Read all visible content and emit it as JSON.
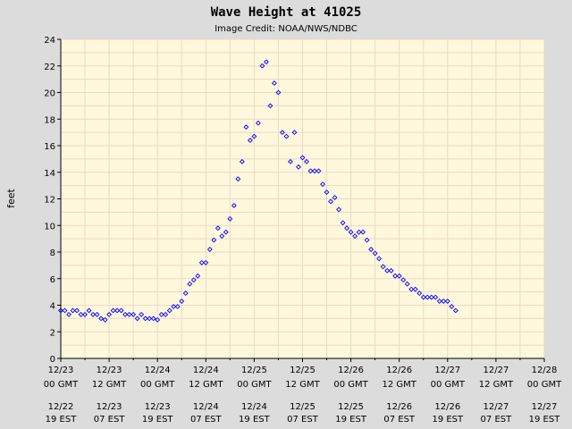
{
  "chart_data": {
    "type": "scatter",
    "title": "Wave Height at 41025",
    "subtitle": "Image Credit: NOAA/NWS/NDBC",
    "ylabel": "feet",
    "ylim": [
      0,
      24
    ],
    "yticks": [
      0,
      2,
      4,
      6,
      8,
      10,
      12,
      14,
      16,
      18,
      20,
      22,
      24
    ],
    "xlim": [
      "12/23 00:00 GMT",
      "12/28 00:00 GMT"
    ],
    "x_ticks_gmt": [
      {
        "date": "12/23",
        "time": "00 GMT"
      },
      {
        "date": "12/23",
        "time": "12 GMT"
      },
      {
        "date": "12/24",
        "time": "00 GMT"
      },
      {
        "date": "12/24",
        "time": "12 GMT"
      },
      {
        "date": "12/25",
        "time": "00 GMT"
      },
      {
        "date": "12/25",
        "time": "12 GMT"
      },
      {
        "date": "12/26",
        "time": "00 GMT"
      },
      {
        "date": "12/26",
        "time": "12 GMT"
      },
      {
        "date": "12/27",
        "time": "00 GMT"
      },
      {
        "date": "12/27",
        "time": "12 GMT"
      },
      {
        "date": "12/28",
        "time": "00 GMT"
      }
    ],
    "x_ticks_est": [
      {
        "date": "12/22",
        "time": "19 EST"
      },
      {
        "date": "12/23",
        "time": "07 EST"
      },
      {
        "date": "12/23",
        "time": "19 EST"
      },
      {
        "date": "12/24",
        "time": "07 EST"
      },
      {
        "date": "12/24",
        "time": "19 EST"
      },
      {
        "date": "12/25",
        "time": "07 EST"
      },
      {
        "date": "12/25",
        "time": "19 EST"
      },
      {
        "date": "12/26",
        "time": "07 EST"
      },
      {
        "date": "12/26",
        "time": "19 EST"
      },
      {
        "date": "12/27",
        "time": "07 EST"
      },
      {
        "date": "12/27",
        "time": "19 EST"
      }
    ],
    "grid": true,
    "colors": {
      "point": "#0000ff",
      "plot_bg": "#fff8dc",
      "page_bg": "#dcdcdc",
      "grid": "#ead9c5"
    },
    "series": [
      {
        "points": [
          [
            "12/23 00:00",
            3.6
          ],
          [
            "12/23 01:00",
            3.6
          ],
          [
            "12/23 02:00",
            3.3
          ],
          [
            "12/23 03:00",
            3.6
          ],
          [
            "12/23 04:00",
            3.6
          ],
          [
            "12/23 05:00",
            3.3
          ],
          [
            "12/23 06:00",
            3.3
          ],
          [
            "12/23 07:00",
            3.6
          ],
          [
            "12/23 08:00",
            3.3
          ],
          [
            "12/23 09:00",
            3.3
          ],
          [
            "12/23 10:00",
            3.0
          ],
          [
            "12/23 11:00",
            2.9
          ],
          [
            "12/23 12:00",
            3.3
          ],
          [
            "12/23 13:00",
            3.6
          ],
          [
            "12/23 14:00",
            3.6
          ],
          [
            "12/23 15:00",
            3.6
          ],
          [
            "12/23 16:00",
            3.3
          ],
          [
            "12/23 17:00",
            3.3
          ],
          [
            "12/23 18:00",
            3.3
          ],
          [
            "12/23 19:00",
            3.0
          ],
          [
            "12/23 20:00",
            3.3
          ],
          [
            "12/23 21:00",
            3.0
          ],
          [
            "12/23 22:00",
            3.0
          ],
          [
            "12/23 23:00",
            3.0
          ],
          [
            "12/24 00:00",
            2.9
          ],
          [
            "12/24 01:00",
            3.3
          ],
          [
            "12/24 02:00",
            3.3
          ],
          [
            "12/24 03:00",
            3.6
          ],
          [
            "12/24 04:00",
            3.9
          ],
          [
            "12/24 05:00",
            3.9
          ],
          [
            "12/24 06:00",
            4.3
          ],
          [
            "12/24 07:00",
            4.9
          ],
          [
            "12/24 08:00",
            5.6
          ],
          [
            "12/24 09:00",
            5.9
          ],
          [
            "12/24 10:00",
            6.2
          ],
          [
            "12/24 11:00",
            7.2
          ],
          [
            "12/24 12:00",
            7.2
          ],
          [
            "12/24 13:00",
            8.2
          ],
          [
            "12/24 14:00",
            8.9
          ],
          [
            "12/24 15:00",
            9.8
          ],
          [
            "12/24 16:00",
            9.2
          ],
          [
            "12/24 17:00",
            9.5
          ],
          [
            "12/24 18:00",
            10.5
          ],
          [
            "12/24 19:00",
            11.5
          ],
          [
            "12/24 20:00",
            13.5
          ],
          [
            "12/24 21:00",
            14.8
          ],
          [
            "12/24 22:00",
            17.4
          ],
          [
            "12/24 23:00",
            16.4
          ],
          [
            "12/25 00:00",
            16.7
          ],
          [
            "12/25 01:00",
            17.7
          ],
          [
            "12/25 02:00",
            22.0
          ],
          [
            "12/25 03:00",
            22.3
          ],
          [
            "12/25 04:00",
            19.0
          ],
          [
            "12/25 05:00",
            20.7
          ],
          [
            "12/25 06:00",
            20.0
          ],
          [
            "12/25 07:00",
            17.0
          ],
          [
            "12/25 08:00",
            16.7
          ],
          [
            "12/25 09:00",
            14.8
          ],
          [
            "12/25 10:00",
            17.0
          ],
          [
            "12/25 11:00",
            14.4
          ],
          [
            "12/25 12:00",
            15.1
          ],
          [
            "12/25 13:00",
            14.8
          ],
          [
            "12/25 14:00",
            14.1
          ],
          [
            "12/25 15:00",
            14.1
          ],
          [
            "12/25 16:00",
            14.1
          ],
          [
            "12/25 17:00",
            13.1
          ],
          [
            "12/25 18:00",
            12.5
          ],
          [
            "12/25 19:00",
            11.8
          ],
          [
            "12/25 20:00",
            12.1
          ],
          [
            "12/25 21:00",
            11.2
          ],
          [
            "12/25 22:00",
            10.2
          ],
          [
            "12/25 23:00",
            9.8
          ],
          [
            "12/26 00:00",
            9.5
          ],
          [
            "12/26 01:00",
            9.2
          ],
          [
            "12/26 02:00",
            9.5
          ],
          [
            "12/26 03:00",
            9.5
          ],
          [
            "12/26 04:00",
            8.9
          ],
          [
            "12/26 05:00",
            8.2
          ],
          [
            "12/26 06:00",
            7.9
          ],
          [
            "12/26 07:00",
            7.5
          ],
          [
            "12/26 08:00",
            6.9
          ],
          [
            "12/26 09:00",
            6.6
          ],
          [
            "12/26 10:00",
            6.6
          ],
          [
            "12/26 11:00",
            6.2
          ],
          [
            "12/26 12:00",
            6.2
          ],
          [
            "12/26 13:00",
            5.9
          ],
          [
            "12/26 14:00",
            5.6
          ],
          [
            "12/26 15:00",
            5.2
          ],
          [
            "12/26 16:00",
            5.2
          ],
          [
            "12/26 17:00",
            4.9
          ],
          [
            "12/26 18:00",
            4.6
          ],
          [
            "12/26 19:00",
            4.6
          ],
          [
            "12/26 20:00",
            4.6
          ],
          [
            "12/26 21:00",
            4.6
          ],
          [
            "12/26 22:00",
            4.3
          ],
          [
            "12/26 23:00",
            4.3
          ],
          [
            "12/27 00:00",
            4.3
          ],
          [
            "12/27 01:00",
            3.9
          ],
          [
            "12/27 02:00",
            3.6
          ]
        ]
      }
    ]
  }
}
